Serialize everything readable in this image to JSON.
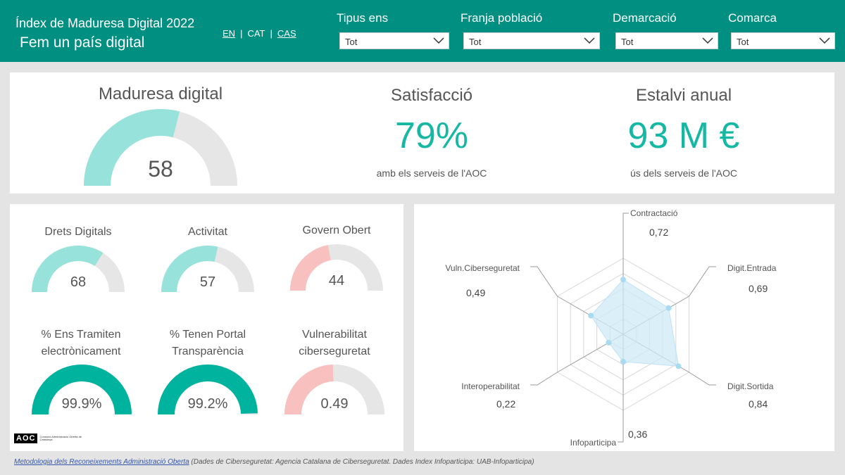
{
  "header": {
    "title": "Índex de Maduresa Digital 2022",
    "subtitle": "Fem un país digital",
    "languages": [
      {
        "label": "EN"
      },
      {
        "label": "CAT"
      },
      {
        "label": "CAS"
      }
    ],
    "separator": "|",
    "filters": [
      {
        "label": "Tipus ens",
        "value": "Tot"
      },
      {
        "label": "Franja població",
        "value": "Tot"
      },
      {
        "label": "Demarcació",
        "value": "Tot"
      },
      {
        "label": "Comarca",
        "value": "Tot"
      }
    ]
  },
  "colors": {
    "header": "#008f80",
    "gauge_teal_light": "#97e2da",
    "gauge_teal_dark": "#00b39f",
    "gauge_pink": "#f9c0c0",
    "gauge_track": "#e6e6e6",
    "radar_fill": "#cfe9f7",
    "radar_point": "#a8daf2"
  },
  "kpis": {
    "maturity": {
      "title": "Maduresa digital",
      "value": "58",
      "level": 58,
      "max": 100
    },
    "satisfaction": {
      "title": "Satisfacció",
      "value": "79%",
      "sub": "amb els serveis de l'AOC"
    },
    "savings": {
      "title": "Estalvi anual",
      "value": "93 M €",
      "sub": "ús dels serveis de l'AOC"
    }
  },
  "gauges": [
    {
      "title": "Drets Digitals",
      "value": "68",
      "level": 68,
      "max": 100,
      "color": "teal_light"
    },
    {
      "title": "Activitat",
      "value": "57",
      "level": 57,
      "max": 100,
      "color": "teal_light"
    },
    {
      "title": "Govern Obert",
      "value": "44",
      "level": 44,
      "max": 100,
      "color": "pink"
    },
    {
      "title": "% Ens Tramiten electrònicament",
      "value": "99.9%",
      "level": 99.9,
      "max": 100,
      "color": "teal_dark"
    },
    {
      "title": "% Tenen Portal Transparència",
      "value": "99.2%",
      "level": 99.2,
      "max": 100,
      "color": "teal_dark"
    },
    {
      "title": "Vulnerabilitat ciberseguretat",
      "value": "0.49",
      "level": 0.49,
      "max": 1,
      "color": "pink"
    }
  ],
  "chart_data": {
    "type": "radar",
    "axes": [
      "Contractació",
      "Digit.Entrada",
      "Digit.Sortida",
      "Infoparticipa",
      "Interoperabilitat",
      "Vuln.Ciberseguretat"
    ],
    "values": [
      0.72,
      0.69,
      0.84,
      0.36,
      0.22,
      0.49
    ],
    "value_labels": [
      "0,72",
      "0,69",
      "0,84",
      "0,36",
      "0,22",
      "0,49"
    ],
    "range": [
      0,
      1
    ],
    "grid_levels": 5
  },
  "logo": {
    "mark": "AOC",
    "text": "Consorci Administració Oberta de Catalunya"
  },
  "footer": {
    "link": "Metodologia dels Reconeixements Administració Oberta",
    "note": " (Dades de Ciberseguretat: Agencia Catalana de Ciberseguretat. Dades Index Infoparticipa: UAB-Infoparticipa)"
  }
}
